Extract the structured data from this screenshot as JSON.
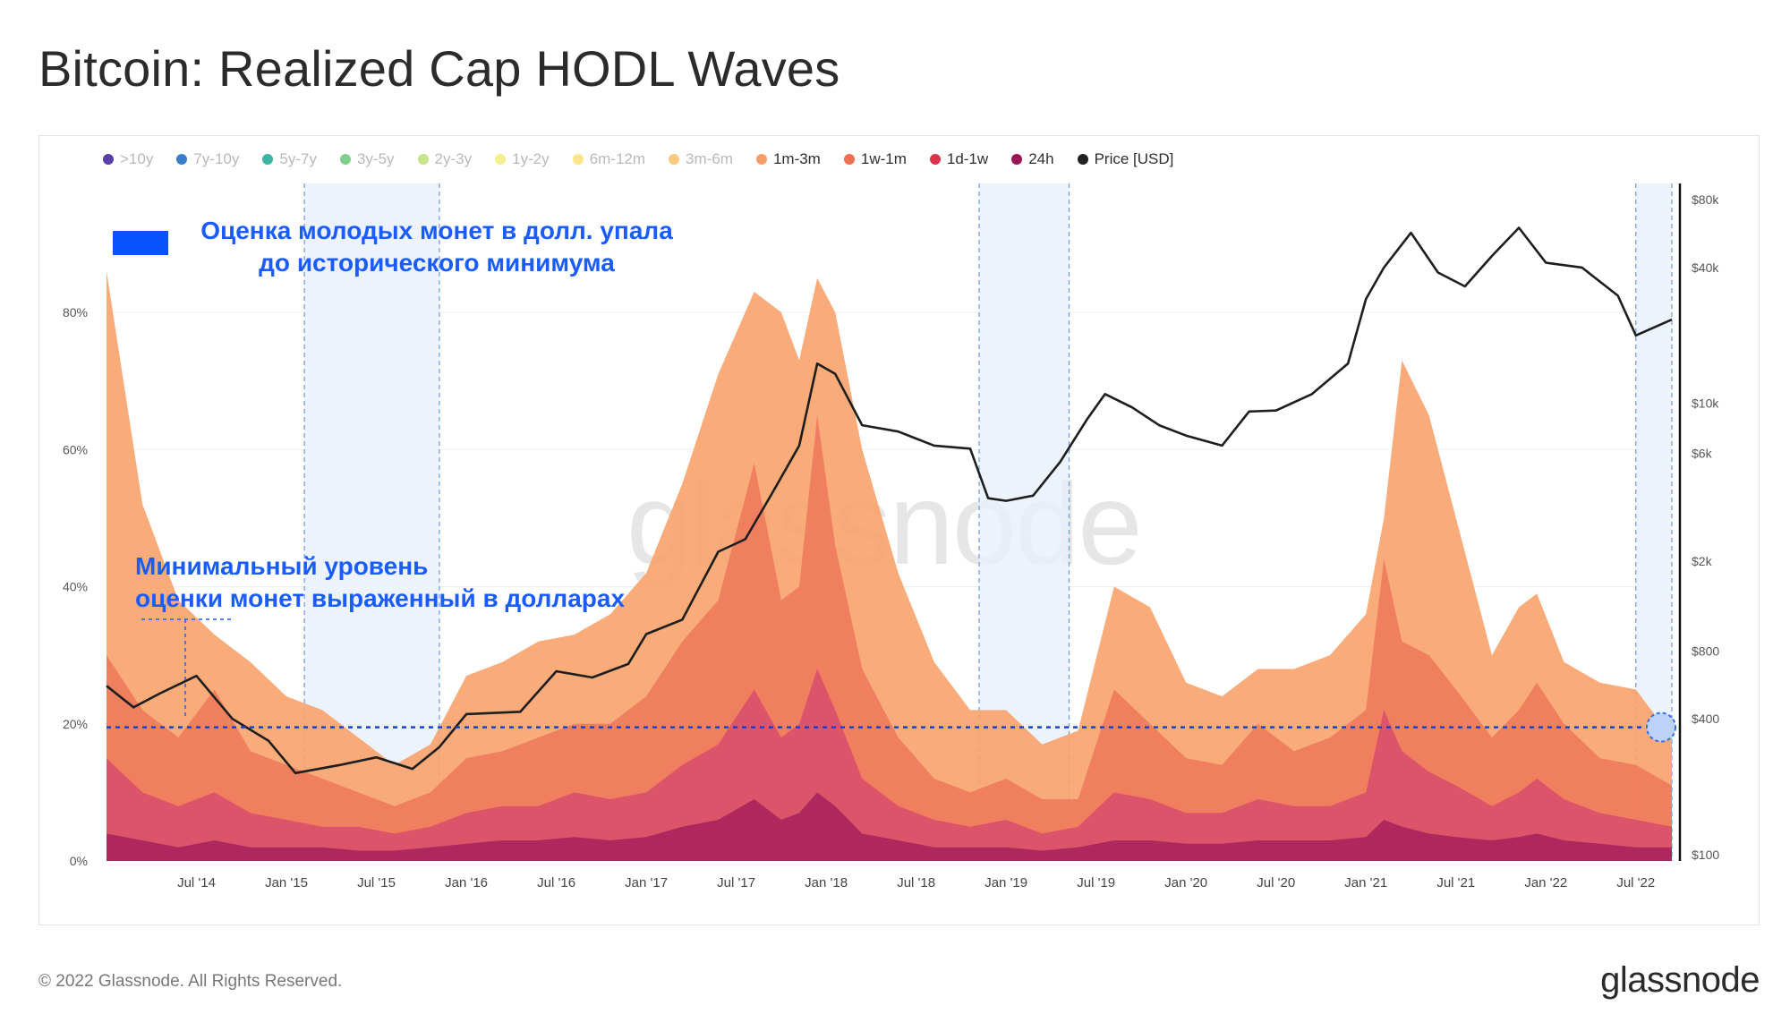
{
  "title": "Bitcoin: Realized Cap HODL Waves",
  "legend": [
    {
      "label": ">10y",
      "color": "#5b3fa8",
      "active": false
    },
    {
      "label": "7y-10y",
      "color": "#3a7dc9",
      "active": false
    },
    {
      "label": "5y-7y",
      "color": "#3bb3a5",
      "active": false
    },
    {
      "label": "3y-5y",
      "color": "#7fcf8f",
      "active": false
    },
    {
      "label": "2y-3y",
      "color": "#c6e58a",
      "active": false
    },
    {
      "label": "1y-2y",
      "color": "#f3f08b",
      "active": false
    },
    {
      "label": "6m-12m",
      "color": "#fce58a",
      "active": false
    },
    {
      "label": "3m-6m",
      "color": "#f9c97e",
      "active": false
    },
    {
      "label": "1m-3m",
      "color": "#f6a067",
      "active": true
    },
    {
      "label": "1w-1m",
      "color": "#ee6f52",
      "active": true
    },
    {
      "label": "1d-1w",
      "color": "#d9344c",
      "active": true
    },
    {
      "label": "24h",
      "color": "#9c1553",
      "active": true
    },
    {
      "label": "Price [USD]",
      "color": "#222222",
      "active": true
    }
  ],
  "annotations": {
    "top_line1": "Оценка молодых монет в долл. упала",
    "top_line2": "до исторического минимума",
    "mid_line1": "Минимальный уровень",
    "mid_line2": "оценки монет выраженный в долларах"
  },
  "watermark": "glassnode",
  "footer": "© 2022 Glassnode. All Rights Reserved.",
  "brand": "glassnode",
  "chart_data": {
    "type": "area",
    "title": "Bitcoin: Realized Cap HODL Waves",
    "x_ticks": [
      "Jul '14",
      "Jan '15",
      "Jul '15",
      "Jan '16",
      "Jul '16",
      "Jan '17",
      "Jul '17",
      "Jan '18",
      "Jul '18",
      "Jan '19",
      "Jul '19",
      "Jan '20",
      "Jul '20",
      "Jan '21",
      "Jul '21",
      "Jan '22",
      "Jul '22"
    ],
    "y_left_ticks": [
      "0%",
      "20%",
      "40%",
      "60%",
      "80%"
    ],
    "y_left_range": [
      0,
      100
    ],
    "y_right_ticks": [
      "$100",
      "$400",
      "$800",
      "$2k",
      "$6k",
      "$10k",
      "$40k",
      "$80k"
    ],
    "y_right_range": [
      100,
      80000
    ],
    "y_right_scale": "log",
    "x_range": [
      2014.0,
      2022.7
    ],
    "stacked_cumulative_share_percent": {
      "x": [
        2014.0,
        2014.2,
        2014.4,
        2014.6,
        2014.8,
        2015.0,
        2015.2,
        2015.4,
        2015.6,
        2015.8,
        2016.0,
        2016.2,
        2016.4,
        2016.6,
        2016.8,
        2017.0,
        2017.2,
        2017.4,
        2017.6,
        2017.75,
        2017.85,
        2017.95,
        2018.05,
        2018.2,
        2018.4,
        2018.6,
        2018.8,
        2019.0,
        2019.2,
        2019.4,
        2019.6,
        2019.8,
        2020.0,
        2020.2,
        2020.4,
        2020.6,
        2020.8,
        2021.0,
        2021.1,
        2021.2,
        2021.35,
        2021.5,
        2021.7,
        2021.85,
        2021.95,
        2022.1,
        2022.3,
        2022.5,
        2022.7
      ],
      "series": [
        {
          "name": "1m-3m",
          "values": [
            86,
            52,
            38,
            33,
            29,
            24,
            22,
            18,
            14,
            17,
            27,
            29,
            32,
            33,
            36,
            42,
            55,
            71,
            83,
            80,
            73,
            85,
            80,
            60,
            42,
            29,
            22,
            22,
            17,
            19,
            40,
            37,
            26,
            24,
            28,
            28,
            30,
            36,
            50,
            73,
            65,
            50,
            30,
            37,
            39,
            29,
            26,
            25,
            18
          ]
        },
        {
          "name": "1w-1m",
          "values": [
            30,
            22,
            18,
            25,
            16,
            14,
            12,
            10,
            8,
            10,
            15,
            16,
            18,
            20,
            20,
            24,
            32,
            38,
            58,
            38,
            40,
            65,
            46,
            28,
            18,
            12,
            10,
            12,
            9,
            9,
            25,
            20,
            15,
            14,
            20,
            16,
            18,
            22,
            44,
            32,
            30,
            25,
            18,
            22,
            26,
            20,
            15,
            14,
            11
          ]
        },
        {
          "name": "1d-1w",
          "values": [
            15,
            10,
            8,
            10,
            7,
            6,
            5,
            5,
            4,
            5,
            7,
            8,
            8,
            10,
            9,
            10,
            14,
            17,
            25,
            18,
            20,
            28,
            22,
            12,
            8,
            6,
            5,
            6,
            4,
            5,
            10,
            9,
            7,
            7,
            9,
            8,
            8,
            10,
            22,
            16,
            13,
            11,
            8,
            10,
            12,
            9,
            7,
            6,
            5
          ]
        },
        {
          "name": "24h",
          "values": [
            4,
            3,
            2,
            3,
            2,
            2,
            2,
            1.5,
            1.5,
            2,
            2.5,
            3,
            3,
            3.5,
            3,
            3.5,
            5,
            6,
            9,
            6,
            7,
            10,
            8,
            4,
            3,
            2,
            2,
            2,
            1.5,
            2,
            3,
            3,
            2.5,
            2.5,
            3,
            3,
            3,
            3.5,
            6,
            5,
            4,
            3.5,
            3,
            3.5,
            4,
            3,
            2.5,
            2,
            2
          ]
        }
      ]
    },
    "price_usd": {
      "x": [
        2014.0,
        2014.15,
        2014.3,
        2014.5,
        2014.7,
        2014.9,
        2015.05,
        2015.3,
        2015.5,
        2015.7,
        2015.85,
        2016.0,
        2016.3,
        2016.5,
        2016.7,
        2016.9,
        2017.0,
        2017.2,
        2017.4,
        2017.55,
        2017.7,
        2017.85,
        2017.95,
        2018.05,
        2018.2,
        2018.4,
        2018.6,
        2018.8,
        2018.9,
        2019.0,
        2019.15,
        2019.3,
        2019.45,
        2019.55,
        2019.7,
        2019.85,
        2020.0,
        2020.2,
        2020.35,
        2020.5,
        2020.7,
        2020.9,
        2021.0,
        2021.1,
        2021.25,
        2021.4,
        2021.55,
        2021.7,
        2021.85,
        2022.0,
        2022.2,
        2022.4,
        2022.5,
        2022.7
      ],
      "values": [
        560,
        450,
        520,
        620,
        400,
        320,
        230,
        250,
        270,
        240,
        300,
        420,
        430,
        650,
        610,
        700,
        950,
        1100,
        2200,
        2500,
        4000,
        6500,
        15000,
        13500,
        8000,
        7500,
        6500,
        6300,
        3800,
        3700,
        3900,
        5500,
        8500,
        11000,
        9600,
        8000,
        7200,
        6500,
        9200,
        9300,
        11000,
        15000,
        29000,
        40000,
        57000,
        38000,
        33000,
        45000,
        60000,
        42000,
        40000,
        30000,
        20000,
        23500
      ]
    },
    "highlight_periods": [
      [
        2015.1,
        2015.85
      ],
      [
        2018.85,
        2019.35
      ],
      [
        2022.5,
        2022.7
      ]
    ],
    "reference_line_percent": 19.5
  }
}
